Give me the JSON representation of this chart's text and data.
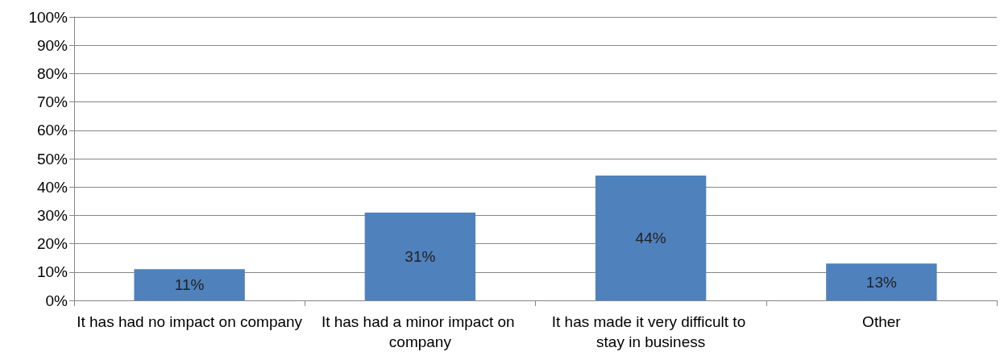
{
  "chart_data": {
    "type": "bar",
    "categories": [
      "It has had no impact on company",
      "It has had a minor impact on company",
      "It has made it very difficult to stay in business",
      "Other"
    ],
    "values": [
      11,
      31,
      44,
      13
    ],
    "value_labels": [
      "11%",
      "31%",
      "44%",
      "13%"
    ],
    "color": "#4f81bd",
    "ylim": [
      0,
      100
    ],
    "yticks": [
      {
        "value": 0,
        "label": "0%"
      },
      {
        "value": 10,
        "label": "10%"
      },
      {
        "value": 20,
        "label": "20%"
      },
      {
        "value": 30,
        "label": "30%"
      },
      {
        "value": 40,
        "label": "40%"
      },
      {
        "value": 50,
        "label": "50%"
      },
      {
        "value": 60,
        "label": "60%"
      },
      {
        "value": 70,
        "label": "70%"
      },
      {
        "value": 80,
        "label": "80%"
      },
      {
        "value": 90,
        "label": "90%"
      },
      {
        "value": 100,
        "label": "100%"
      }
    ],
    "grid": "y"
  }
}
